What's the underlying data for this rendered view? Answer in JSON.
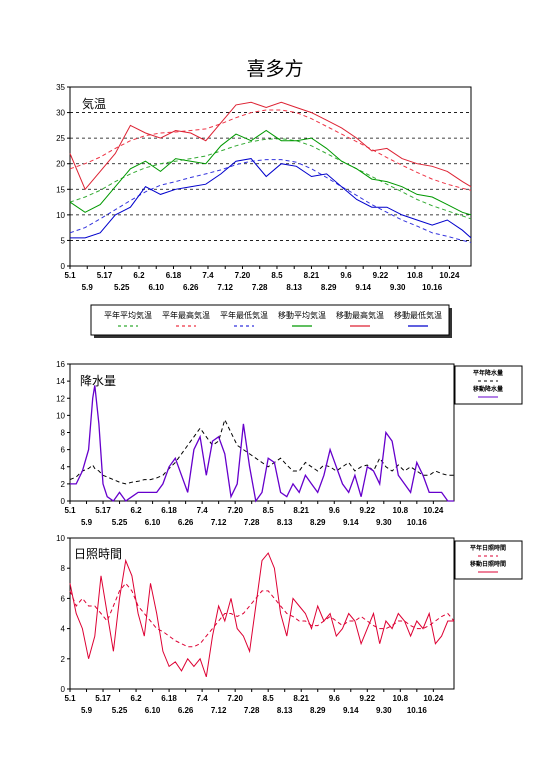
{
  "page_title": "喜多方",
  "colors": {
    "normal_mean": "#33aa33",
    "normal_max": "#ee3344",
    "normal_min": "#3333dd",
    "moving_mean": "#009900",
    "moving_max": "#dd2233",
    "moving_min": "#0000cc",
    "precip": "#6600cc",
    "precip_normal": "#000000",
    "sun": "#dd0033",
    "sun_normal": "#dd0033"
  },
  "chart_data": [
    {
      "type": "line",
      "panel_label": "気温",
      "ylim": [
        0,
        35
      ],
      "yticks": [
        "0",
        "5",
        "10",
        "15",
        "20",
        "25",
        "30",
        "35"
      ],
      "xticks_row1": [
        "5.1",
        "5.17",
        "6.2",
        "6.18",
        "7.4",
        "7.20",
        "8.5",
        "8.21",
        "9.6",
        "9.22",
        "10.8",
        "10.24"
      ],
      "xticks_row2": [
        "5.9",
        "5.25",
        "6.10",
        "6.26",
        "7.12",
        "7.28",
        "8.13",
        "8.29",
        "9.14",
        "9.30",
        "10.16"
      ],
      "grid": "horizontal-dashed",
      "legend_placement": "bottom",
      "legend": [
        "平年平均気温",
        "平年最高気温",
        "平年最低気温",
        "移動平均気温",
        "移動最高気温",
        "移動最低気温"
      ],
      "x_days": [
        0,
        7,
        14,
        21,
        28,
        35,
        42,
        49,
        56,
        63,
        70,
        77,
        84,
        91,
        98,
        105,
        112,
        119,
        126,
        133,
        140,
        147,
        154,
        161,
        168,
        175,
        182,
        186
      ],
      "series": [
        {
          "name": "平年平均気温",
          "style": "dashed",
          "values": [
            12.5,
            13.5,
            14.8,
            16.5,
            18.0,
            19.2,
            20.0,
            20.5,
            21.0,
            21.5,
            22.5,
            23.5,
            24.3,
            24.8,
            24.9,
            24.5,
            23.5,
            22.0,
            20.5,
            19.0,
            17.5,
            16.0,
            14.5,
            13.0,
            11.8,
            10.8,
            9.8,
            9.2
          ]
        },
        {
          "name": "平年最高気温",
          "style": "dashed",
          "values": [
            19.0,
            20.0,
            21.3,
            23.0,
            24.5,
            25.5,
            26.0,
            26.2,
            26.5,
            26.8,
            27.8,
            29.0,
            30.0,
            30.5,
            30.5,
            30.0,
            28.8,
            27.3,
            25.8,
            24.3,
            22.8,
            21.2,
            19.7,
            18.3,
            17.0,
            16.0,
            15.2,
            14.8
          ]
        },
        {
          "name": "平年最低気温",
          "style": "dashed",
          "values": [
            6.5,
            7.5,
            9.2,
            11.0,
            12.8,
            14.5,
            15.8,
            16.5,
            17.3,
            18.0,
            18.8,
            19.8,
            20.5,
            20.8,
            20.8,
            20.3,
            19.0,
            17.3,
            15.5,
            13.8,
            12.0,
            10.5,
            9.0,
            7.8,
            6.5,
            5.8,
            5.0,
            4.6
          ]
        },
        {
          "name": "移動平均気温",
          "style": "solid",
          "values": [
            12.5,
            10.5,
            12.0,
            15.5,
            19.0,
            20.5,
            18.5,
            21.0,
            20.5,
            20.0,
            23.5,
            25.8,
            24.5,
            26.5,
            24.5,
            24.5,
            25.0,
            23.0,
            20.5,
            19.0,
            17.0,
            16.5,
            15.5,
            14.0,
            13.5,
            12.0,
            10.5,
            10.0
          ]
        },
        {
          "name": "移動最高気温",
          "style": "solid",
          "values": [
            22.0,
            15.0,
            18.5,
            22.0,
            27.5,
            26.0,
            25.0,
            26.5,
            26.0,
            24.5,
            28.0,
            31.5,
            32.0,
            31.0,
            32.0,
            31.0,
            30.0,
            28.5,
            27.0,
            25.0,
            22.5,
            23.0,
            21.0,
            20.0,
            19.5,
            18.5,
            16.5,
            15.5
          ]
        },
        {
          "name": "移動最低気温",
          "style": "solid",
          "values": [
            5.5,
            5.5,
            6.5,
            10.0,
            11.5,
            15.5,
            14.0,
            15.0,
            15.5,
            16.0,
            18.0,
            20.5,
            21.0,
            17.5,
            20.0,
            19.5,
            17.5,
            18.0,
            15.5,
            13.0,
            11.5,
            11.5,
            10.0,
            9.0,
            8.0,
            9.0,
            7.0,
            5.5
          ]
        }
      ]
    },
    {
      "type": "line",
      "panel_label": "降水量",
      "ylim": [
        0,
        16
      ],
      "yticks": [
        "0",
        "2",
        "4",
        "6",
        "8",
        "10",
        "12",
        "14",
        "16"
      ],
      "xticks_row1": [
        "5.1",
        "5.17",
        "6.2",
        "6.18",
        "7.4",
        "7.20",
        "8.5",
        "8.21",
        "9.6",
        "9.22",
        "10.8",
        "10.24"
      ],
      "xticks_row2": [
        "5.9",
        "5.25",
        "6.10",
        "6.26",
        "7.12",
        "7.28",
        "8.13",
        "8.29",
        "9.14",
        "9.30",
        "10.16"
      ],
      "legend": [
        "平年降水量",
        "移動降水量"
      ],
      "x_days": [
        0,
        3,
        6,
        9,
        11,
        12,
        14,
        16,
        18,
        21,
        24,
        27,
        30,
        33,
        36,
        39,
        42,
        45,
        48,
        51,
        54,
        57,
        60,
        63,
        66,
        69,
        72,
        75,
        78,
        81,
        84,
        87,
        90,
        93,
        96,
        99,
        102,
        105,
        108,
        111,
        114,
        117,
        120,
        123,
        126,
        129,
        132,
        135,
        138,
        141,
        144,
        147,
        150,
        153,
        156,
        159,
        162,
        165,
        168,
        171,
        174,
        177,
        180,
        183,
        186
      ],
      "series": [
        {
          "name": "平年降水量",
          "style": "dashed",
          "values": [
            2.5,
            2.8,
            3.5,
            3.8,
            4.2,
            3.8,
            3.5,
            3.0,
            2.8,
            2.5,
            2.2,
            2.0,
            2.2,
            2.3,
            2.5,
            2.5,
            2.7,
            3.0,
            3.8,
            4.5,
            5.5,
            6.5,
            7.5,
            8.5,
            7.5,
            6.5,
            7.0,
            9.5,
            8.0,
            6.5,
            6.0,
            5.5,
            5.0,
            4.5,
            4.0,
            4.5,
            5.0,
            4.2,
            3.5,
            3.5,
            4.5,
            4.0,
            3.5,
            4.2,
            4.0,
            3.5,
            4.0,
            4.5,
            3.5,
            4.0,
            4.2,
            3.5,
            5.0,
            4.0,
            3.5,
            4.2,
            3.5,
            4.0,
            3.5,
            3.0,
            3.0,
            3.5,
            3.2,
            3.0,
            3.0
          ]
        },
        {
          "name": "移動降水量",
          "style": "solid",
          "values": [
            2.0,
            2.0,
            3.5,
            6.0,
            12.0,
            13.5,
            9.0,
            2.0,
            0.5,
            0.0,
            1.0,
            0.0,
            0.5,
            1.0,
            1.0,
            1.0,
            1.0,
            2.0,
            4.0,
            5.0,
            3.0,
            1.0,
            6.0,
            7.5,
            3.0,
            7.0,
            7.5,
            5.5,
            0.5,
            2.0,
            9.0,
            4.0,
            0.0,
            1.0,
            5.0,
            4.5,
            1.0,
            0.5,
            2.0,
            1.0,
            3.0,
            2.0,
            1.0,
            3.0,
            6.0,
            4.0,
            2.0,
            1.0,
            3.0,
            0.5,
            4.0,
            3.5,
            2.0,
            8.0,
            7.0,
            3.0,
            2.0,
            1.0,
            4.5,
            3.0,
            1.0,
            1.0,
            1.0,
            0.0,
            0.0
          ]
        }
      ]
    },
    {
      "type": "line",
      "panel_label": "日照時間",
      "ylim": [
        0,
        10
      ],
      "yticks": [
        "0",
        "2",
        "4",
        "6",
        "8",
        "10"
      ],
      "xticks_row1": [
        "5.1",
        "5.17",
        "6.2",
        "6.18",
        "7.4",
        "7.20",
        "8.5",
        "8.21",
        "9.6",
        "9.22",
        "10.8",
        "10.24"
      ],
      "xticks_row2": [
        "5.9",
        "5.25",
        "6.10",
        "6.26",
        "7.12",
        "7.28",
        "8.13",
        "8.29",
        "9.14",
        "9.30",
        "10.16"
      ],
      "legend": [
        "平年日照時間",
        "移動日照時間"
      ],
      "x_days": [
        0,
        3,
        6,
        9,
        12,
        15,
        18,
        21,
        24,
        27,
        30,
        33,
        36,
        39,
        42,
        45,
        48,
        51,
        54,
        57,
        60,
        63,
        66,
        69,
        72,
        75,
        78,
        81,
        84,
        87,
        90,
        93,
        96,
        99,
        102,
        105,
        108,
        111,
        114,
        117,
        120,
        123,
        126,
        129,
        132,
        135,
        138,
        141,
        144,
        147,
        150,
        153,
        156,
        159,
        162,
        165,
        168,
        171,
        174,
        177,
        180,
        183,
        186
      ],
      "series": [
        {
          "name": "平年日照時間",
          "style": "dashed",
          "values": [
            6.5,
            5.5,
            6.0,
            5.5,
            5.5,
            5.0,
            4.5,
            5.5,
            6.5,
            7.0,
            6.5,
            5.5,
            5.0,
            4.5,
            4.0,
            3.8,
            3.5,
            3.2,
            3.0,
            2.8,
            2.8,
            3.0,
            3.5,
            4.0,
            4.5,
            5.0,
            5.0,
            4.8,
            5.0,
            5.5,
            6.0,
            6.5,
            6.5,
            6.0,
            5.5,
            5.0,
            4.8,
            4.5,
            4.5,
            4.2,
            4.2,
            4.5,
            4.8,
            4.5,
            4.2,
            4.5,
            4.5,
            4.8,
            4.5,
            4.2,
            4.0,
            4.0,
            4.2,
            4.5,
            4.5,
            4.2,
            4.0,
            4.0,
            4.2,
            4.5,
            4.8,
            5.0,
            4.5
          ]
        },
        {
          "name": "移動日照時間",
          "style": "solid",
          "values": [
            7.0,
            5.0,
            4.0,
            2.0,
            3.5,
            7.5,
            5.0,
            2.5,
            6.0,
            8.5,
            7.5,
            5.0,
            3.5,
            7.0,
            5.0,
            2.5,
            1.5,
            1.8,
            1.2,
            2.0,
            1.5,
            2.0,
            0.8,
            3.5,
            5.5,
            4.5,
            6.0,
            4.0,
            3.5,
            2.5,
            5.5,
            8.5,
            9.0,
            8.0,
            5.0,
            3.5,
            6.0,
            5.5,
            5.0,
            4.0,
            5.5,
            4.5,
            5.0,
            3.5,
            4.0,
            5.0,
            4.5,
            3.0,
            4.0,
            5.0,
            3.0,
            4.5,
            4.0,
            5.0,
            4.5,
            3.5,
            4.5,
            4.0,
            5.0,
            3.0,
            3.5,
            4.5,
            4.5
          ]
        }
      ]
    }
  ]
}
